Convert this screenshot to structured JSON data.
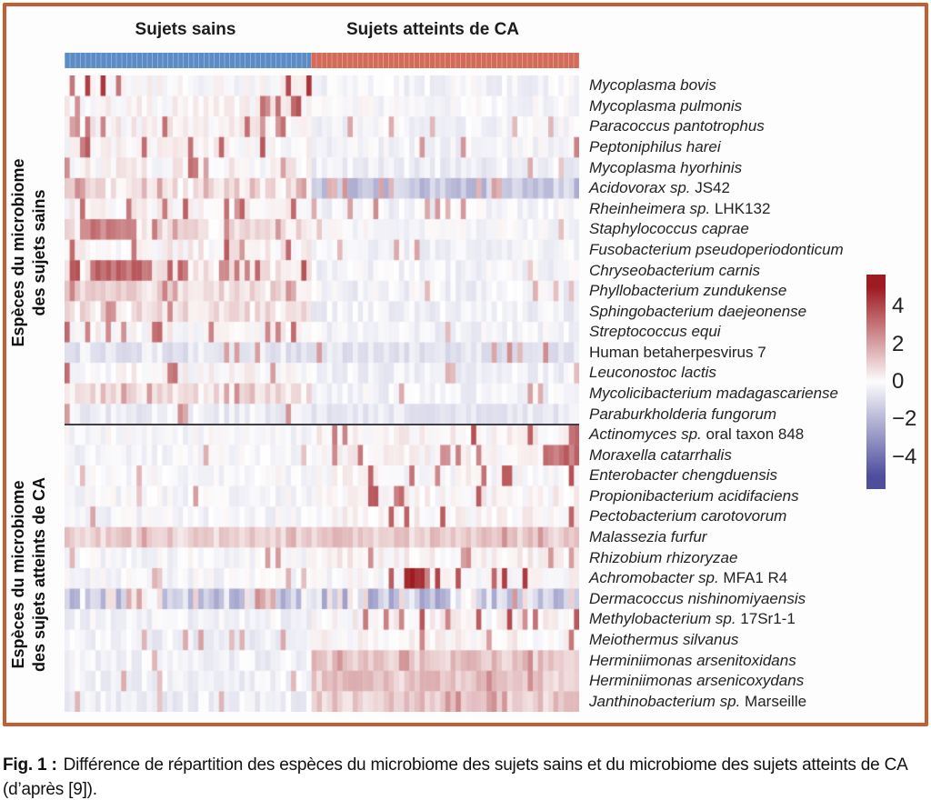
{
  "figure": {
    "border_color": "#c65c30",
    "caption_prefix": "Fig. 1 :",
    "caption_text": "Différence de répartition des espèces du microbiome des sujets sains et du microbiome des sujets atteints de CA (d’après [9])."
  },
  "chart_data": {
    "type": "heatmap",
    "column_groups": [
      {
        "label": "Sujets sains",
        "color": "#5b8cc5",
        "n_cols": 48
      },
      {
        "label": "Sujets atteints de CA",
        "color": "#d46a58",
        "n_cols": 52
      }
    ],
    "row_groups": [
      {
        "label_line1": "Espèces du microbiome",
        "label_line2": "des sujets sains",
        "row_count": 17
      },
      {
        "label_line1": "Espèces du microbiome",
        "label_line2": "des sujets atteints de CA",
        "row_count": 14
      }
    ],
    "colorbar": {
      "ticks": [
        4,
        2,
        0,
        -2,
        -4
      ],
      "vmax": 5.7,
      "vmin": -5.7,
      "positive_color": "#9e1b21",
      "negative_color": "#4e4e9d"
    },
    "note": "cell values approximate; each row encoded as [base, noise, spike_probability, spike_amplitude] per column group",
    "rows": [
      {
        "italic": "Mycoplasma bovis",
        "regular": "",
        "pattern": {
          "sains": [
            0.0,
            0.35,
            0.1,
            4.0
          ],
          "ca": [
            -0.15,
            0.3,
            0.03,
            1.6
          ]
        }
      },
      {
        "italic": "Mycoplasma pulmonis",
        "regular": "",
        "pattern": {
          "sains": [
            0.05,
            0.35,
            0.13,
            3.4
          ],
          "ca": [
            -0.1,
            0.3,
            0.04,
            1.8
          ]
        }
      },
      {
        "italic": "Paracoccus pantotrophus",
        "regular": "",
        "pattern": {
          "sains": [
            0.15,
            0.4,
            0.18,
            2.8
          ],
          "ca": [
            -0.15,
            0.3,
            0.04,
            1.6
          ]
        }
      },
      {
        "italic": "Peptoniphilus harei",
        "regular": "",
        "pattern": {
          "sains": [
            0.05,
            0.35,
            0.13,
            3.6
          ],
          "ca": [
            -0.15,
            0.3,
            0.06,
            2.2
          ]
        }
      },
      {
        "italic": "Mycoplasma hyorhinis",
        "regular": "",
        "pattern": {
          "sains": [
            0.1,
            0.4,
            0.11,
            3.0
          ],
          "ca": [
            -0.3,
            0.3,
            0.03,
            1.6
          ]
        }
      },
      {
        "italic": "Acidovorax sp.",
        "regular": " JS42",
        "pattern": {
          "sains": [
            0.45,
            0.5,
            0.12,
            2.0
          ],
          "ca": [
            -1.3,
            0.8,
            0.05,
            1.8
          ]
        }
      },
      {
        "italic": "Rheinheimera sp.",
        "regular": " LHK132",
        "pattern": {
          "sains": [
            0.1,
            0.35,
            0.16,
            3.2
          ],
          "ca": [
            -0.2,
            0.3,
            0.05,
            2.0
          ]
        }
      },
      {
        "italic": "Staphylococcus caprae",
        "regular": "",
        "pattern": {
          "sains": [
            0.45,
            0.5,
            0.16,
            2.6
          ],
          "ca": [
            -0.1,
            0.3,
            0.05,
            1.6
          ]
        }
      },
      {
        "italic": "Fusobacterium pseudoperiodonticum",
        "regular": "",
        "pattern": {
          "sains": [
            0.15,
            0.4,
            0.13,
            3.0
          ],
          "ca": [
            -0.2,
            0.3,
            0.04,
            1.8
          ]
        }
      },
      {
        "italic": "Chryseobacterium carnis",
        "regular": "",
        "pattern": {
          "sains": [
            0.25,
            0.45,
            0.18,
            3.4
          ],
          "ca": [
            -0.2,
            0.3,
            0.03,
            1.5
          ]
        }
      },
      {
        "italic": "Phyllobacterium zundukense",
        "regular": "",
        "pattern": {
          "sains": [
            0.55,
            0.5,
            0.14,
            2.2
          ],
          "ca": [
            -0.2,
            0.35,
            0.05,
            1.6
          ]
        }
      },
      {
        "italic": "Sphingobacterium daejeonense",
        "regular": "",
        "pattern": {
          "sains": [
            0.5,
            0.5,
            0.13,
            2.4
          ],
          "ca": [
            -0.25,
            0.3,
            0.04,
            1.6
          ]
        }
      },
      {
        "italic": "Streptococcus equi",
        "regular": "",
        "pattern": {
          "sains": [
            0.1,
            0.4,
            0.14,
            3.0
          ],
          "ca": [
            -0.2,
            0.3,
            0.04,
            1.8
          ]
        }
      },
      {
        "italic": "",
        "regular": "Human betaherpesvirus 7",
        "pattern": {
          "sains": [
            -0.5,
            0.4,
            0.11,
            3.0
          ],
          "ca": [
            -0.55,
            0.35,
            0.04,
            2.0
          ]
        }
      },
      {
        "italic": "Leuconostoc lactis",
        "regular": "",
        "pattern": {
          "sains": [
            0.05,
            0.35,
            0.11,
            2.8
          ],
          "ca": [
            -0.25,
            0.3,
            0.03,
            1.4
          ]
        }
      },
      {
        "italic": "Mycolicibacterium madagascariense",
        "regular": "",
        "pattern": {
          "sains": [
            0.45,
            0.5,
            0.14,
            2.2
          ],
          "ca": [
            -0.2,
            0.3,
            0.04,
            1.6
          ]
        }
      },
      {
        "italic": "Paraburkholderia fungorum",
        "regular": "",
        "pattern": {
          "sains": [
            -0.35,
            0.35,
            0.07,
            2.0
          ],
          "ca": [
            -0.45,
            0.3,
            0.03,
            1.4
          ]
        }
      },
      {
        "italic": "Actinomyces sp.",
        "regular": " oral taxon 848",
        "pattern": {
          "sains": [
            -0.1,
            0.3,
            0.04,
            1.8
          ],
          "ca": [
            0.1,
            0.35,
            0.13,
            3.4
          ]
        }
      },
      {
        "italic": "Moraxella catarrhalis",
        "regular": "",
        "pattern": {
          "sains": [
            -0.15,
            0.3,
            0.03,
            1.6
          ],
          "ca": [
            0.1,
            0.35,
            0.14,
            3.8
          ]
        }
      },
      {
        "italic": "Enterobacter chengduensis",
        "regular": "",
        "pattern": {
          "sains": [
            -0.1,
            0.3,
            0.03,
            1.5
          ],
          "ca": [
            0.0,
            0.35,
            0.14,
            3.6
          ]
        }
      },
      {
        "italic": "Propionibacterium acidifaciens",
        "regular": "",
        "pattern": {
          "sains": [
            -0.1,
            0.3,
            0.04,
            1.6
          ],
          "ca": [
            0.1,
            0.35,
            0.12,
            3.2
          ]
        }
      },
      {
        "italic": "Pectobacterium carotovorum",
        "regular": "",
        "pattern": {
          "sains": [
            -0.15,
            0.3,
            0.03,
            1.6
          ],
          "ca": [
            0.1,
            0.35,
            0.13,
            3.2
          ]
        }
      },
      {
        "italic": "Malassezia furfur",
        "regular": "",
        "pattern": {
          "sains": [
            0.75,
            0.5,
            0.08,
            1.8
          ],
          "ca": [
            0.85,
            0.5,
            0.1,
            2.2
          ]
        }
      },
      {
        "italic": "Rhizobium rhizoryzae",
        "regular": "",
        "pattern": {
          "sains": [
            -0.1,
            0.3,
            0.04,
            1.7
          ],
          "ca": [
            0.15,
            0.35,
            0.12,
            3.0
          ]
        }
      },
      {
        "italic": "Achromobacter sp.",
        "regular": " MFA1 R4",
        "pattern": {
          "sains": [
            -0.15,
            0.3,
            0.02,
            1.5
          ],
          "ca": [
            0.0,
            0.35,
            0.1,
            4.2
          ]
        }
      },
      {
        "italic": "Dermacoccus nishinomiyaensis",
        "regular": "",
        "pattern": {
          "sains": [
            -0.7,
            1.5,
            0.15,
            2.4
          ],
          "ca": [
            -0.8,
            1.7,
            0.13,
            2.4
          ]
        }
      },
      {
        "italic": "Methylobacterium sp.",
        "regular": " 17Sr1-1",
        "pattern": {
          "sains": [
            -0.2,
            0.3,
            0.03,
            2.4
          ],
          "ca": [
            0.1,
            0.35,
            0.14,
            3.4
          ]
        }
      },
      {
        "italic": "Meiothermus silvanus",
        "regular": "",
        "pattern": {
          "sains": [
            -0.3,
            0.3,
            0.03,
            1.8
          ],
          "ca": [
            0.1,
            0.35,
            0.12,
            3.0
          ]
        }
      },
      {
        "italic": "Herminiimonas arsenitoxidans",
        "regular": "",
        "pattern": {
          "sains": [
            -0.25,
            0.3,
            0.02,
            1.4
          ],
          "ca": [
            0.95,
            0.6,
            0.08,
            2.0
          ]
        }
      },
      {
        "italic": "Herminiimonas arsenicoxydans",
        "regular": "",
        "pattern": {
          "sains": [
            -0.25,
            0.3,
            0.02,
            1.4
          ],
          "ca": [
            0.95,
            0.6,
            0.08,
            2.0
          ]
        }
      },
      {
        "italic": "Janthinobacterium sp.",
        "regular": " Marseille",
        "pattern": {
          "sains": [
            -0.3,
            0.3,
            0.03,
            1.5
          ],
          "ca": [
            0.85,
            0.55,
            0.1,
            2.2
          ]
        }
      }
    ],
    "clusters": [
      {
        "row": 7,
        "side": "sains",
        "from": 3,
        "to": 12,
        "v": 2.6
      },
      {
        "row": 9,
        "side": "sains",
        "from": 5,
        "to": 16,
        "v": 3.0
      },
      {
        "row": 18,
        "side": "ca",
        "from": 45,
        "to": 51,
        "v": 3.2
      },
      {
        "row": 24,
        "side": "ca",
        "from": 18,
        "to": 21,
        "v": 4.4
      }
    ]
  }
}
